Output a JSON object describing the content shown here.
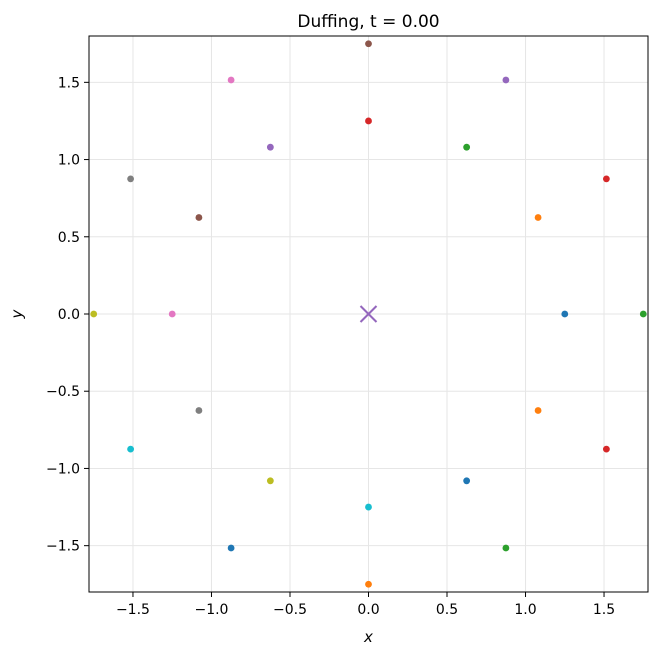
{
  "chart_data": {
    "type": "scatter",
    "title": "Duffing, t = 0.00",
    "xlabel": "x",
    "ylabel": "y",
    "xlim": [
      -1.78,
      1.78
    ],
    "ylim": [
      -1.8,
      1.8
    ],
    "xticks": [
      -1.5,
      -1.0,
      -0.5,
      0.0,
      0.5,
      1.0,
      1.5
    ],
    "yticks": [
      -1.5,
      -1.0,
      -0.5,
      0.0,
      0.5,
      1.0,
      1.5
    ],
    "xtick_labels": [
      "−1.5",
      "−1.0",
      "−0.5",
      "0.0",
      "0.5",
      "1.0",
      "1.5"
    ],
    "ytick_labels": [
      "−1.5",
      "−1.0",
      "−0.5",
      "0.0",
      "0.5",
      "1.0",
      "1.5"
    ],
    "grid": true,
    "marker": {
      "x": 0.0,
      "y": 0.0,
      "symbol": "x",
      "color": "#9467bd"
    },
    "points": [
      {
        "x": 1.25,
        "y": 0.0,
        "color": "#1f77b4"
      },
      {
        "x": 1.08,
        "y": 0.625,
        "color": "#ff7f0e"
      },
      {
        "x": 0.625,
        "y": 1.08,
        "color": "#2ca02c"
      },
      {
        "x": 0.0,
        "y": 1.25,
        "color": "#d62728"
      },
      {
        "x": -0.625,
        "y": 1.08,
        "color": "#9467bd"
      },
      {
        "x": -1.08,
        "y": 0.625,
        "color": "#8c564b"
      },
      {
        "x": -1.25,
        "y": 0.0,
        "color": "#e377c2"
      },
      {
        "x": -1.08,
        "y": -0.625,
        "color": "#7f7f7f"
      },
      {
        "x": -0.625,
        "y": -1.08,
        "color": "#bcbd22"
      },
      {
        "x": 0.0,
        "y": -1.25,
        "color": "#17becf"
      },
      {
        "x": 0.625,
        "y": -1.08,
        "color": "#1f77b4"
      },
      {
        "x": 1.08,
        "y": -0.625,
        "color": "#ff7f0e"
      },
      {
        "x": 1.75,
        "y": 0.0,
        "color": "#2ca02c"
      },
      {
        "x": 1.515,
        "y": 0.875,
        "color": "#d62728"
      },
      {
        "x": 0.875,
        "y": 1.515,
        "color": "#9467bd"
      },
      {
        "x": 0.0,
        "y": 1.75,
        "color": "#8c564b"
      },
      {
        "x": -0.875,
        "y": 1.515,
        "color": "#e377c2"
      },
      {
        "x": -1.515,
        "y": 0.875,
        "color": "#7f7f7f"
      },
      {
        "x": -1.75,
        "y": 0.0,
        "color": "#bcbd22"
      },
      {
        "x": -1.515,
        "y": -0.875,
        "color": "#17becf"
      },
      {
        "x": -0.875,
        "y": -1.515,
        "color": "#1f77b4"
      },
      {
        "x": 0.0,
        "y": -1.75,
        "color": "#ff7f0e"
      },
      {
        "x": 0.875,
        "y": -1.515,
        "color": "#2ca02c"
      },
      {
        "x": 1.515,
        "y": -0.875,
        "color": "#d62728"
      }
    ]
  }
}
